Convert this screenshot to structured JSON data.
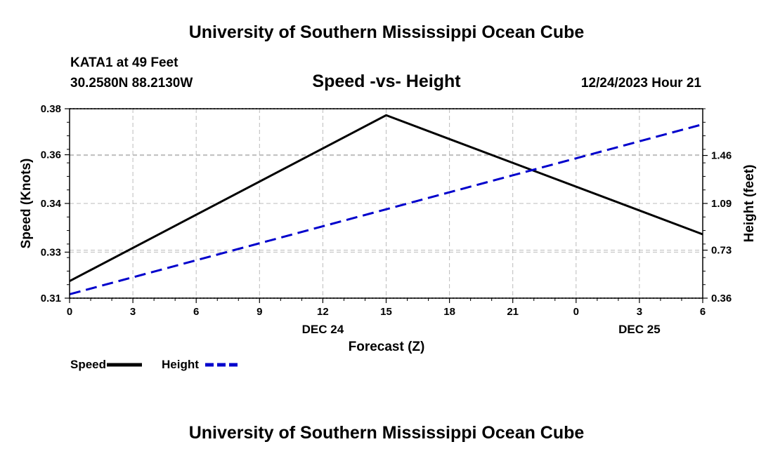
{
  "header": {
    "title": "University of Southern Mississippi Ocean Cube",
    "station": "KATA1 at 49 Feet",
    "coords": "30.2580N  88.2130W",
    "datetime": "12/24/2023 Hour 21"
  },
  "footer": {
    "title": "University of Southern Mississippi Ocean Cube"
  },
  "chart_data": {
    "type": "line",
    "title": "Speed -vs- Height",
    "xlabel": "Forecast (Z)",
    "ylabel": "Speed (Knots)",
    "y2label": "Height (feet)",
    "x": [
      0,
      3,
      6,
      9,
      12,
      15,
      18,
      21,
      24,
      27,
      30
    ],
    "xlim": [
      0,
      30
    ],
    "x_tick_labels": [
      "0",
      "3",
      "6",
      "9",
      "12",
      "15",
      "18",
      "21",
      "0",
      "3",
      "6"
    ],
    "date_labels": [
      {
        "at": 12,
        "label": "DEC 24"
      },
      {
        "at": 27,
        "label": "DEC 25"
      }
    ],
    "ylim": [
      0.31,
      0.38
    ],
    "y_ticks": [
      {
        "v": 0.31,
        "label": "0.31"
      },
      {
        "v": 0.327,
        "label": "0.33"
      },
      {
        "v": 0.345,
        "label": "0.34"
      },
      {
        "v": 0.363,
        "label": "0.36"
      },
      {
        "v": 0.38,
        "label": "0.38"
      }
    ],
    "y2lim": [
      0.36,
      1.82
    ],
    "y2_ticks": [
      {
        "v": 0.36,
        "label": "0.36"
      },
      {
        "v": 0.73,
        "label": "0.73"
      },
      {
        "v": 1.09,
        "label": "1.09"
      },
      {
        "v": 1.46,
        "label": "1.46"
      }
    ],
    "series": [
      {
        "name": "Speed",
        "axis": "left",
        "color": "#000000",
        "dash": false,
        "points": [
          [
            0,
            0.3163
          ],
          [
            15,
            0.3776
          ],
          [
            30,
            0.3336
          ]
        ]
      },
      {
        "name": "Height",
        "axis": "right",
        "color": "#0000cc",
        "dash": true,
        "points": [
          [
            0,
            0.39
          ],
          [
            30,
            1.7
          ]
        ]
      }
    ],
    "legend": [
      {
        "label": "Speed",
        "color": "#000000",
        "dash": false
      },
      {
        "label": "Height",
        "color": "#0000cc",
        "dash": true
      }
    ],
    "grid": true
  }
}
